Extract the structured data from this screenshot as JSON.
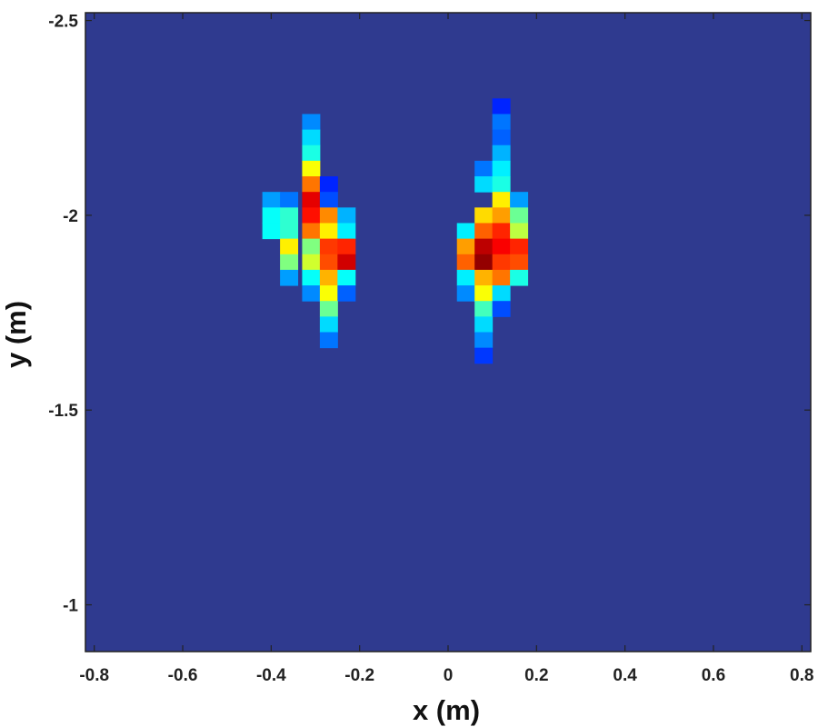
{
  "chart_data": {
    "type": "heatmap",
    "title": "",
    "xlabel": "x (m)",
    "ylabel": "y (m)",
    "xlim": [
      -0.82,
      0.82
    ],
    "ylim": [
      -0.88,
      -2.52
    ],
    "y_axis_reversed": true,
    "x_ticks": [
      "-0.8",
      "-0.6",
      "-0.4",
      "-0.2",
      "0",
      "0.2",
      "0.4",
      "0.6",
      "0.8"
    ],
    "y_ticks": [
      "-2.5",
      "-2",
      "-1.5",
      "-1"
    ],
    "grid": false,
    "colormap": "jet",
    "background_color": "#2f3a8f",
    "cell_width": 0.04,
    "cell_height": 0.04,
    "value_range": [
      0,
      1
    ],
    "cells": [
      {
        "x": -0.31,
        "y": -2.24,
        "v": 0.26
      },
      {
        "x": -0.31,
        "y": -2.2,
        "v": 0.34
      },
      {
        "x": -0.31,
        "y": -2.16,
        "v": 0.4
      },
      {
        "x": -0.31,
        "y": -2.12,
        "v": 0.62
      },
      {
        "x": -0.31,
        "y": -2.08,
        "v": 0.76
      },
      {
        "x": -0.27,
        "y": -2.08,
        "v": 0.16
      },
      {
        "x": -0.4,
        "y": -2.04,
        "v": 0.28
      },
      {
        "x": -0.36,
        "y": -2.04,
        "v": 0.24
      },
      {
        "x": -0.31,
        "y": -2.04,
        "v": 0.9
      },
      {
        "x": -0.27,
        "y": -2.04,
        "v": 0.2
      },
      {
        "x": -0.4,
        "y": -2.0,
        "v": 0.38
      },
      {
        "x": -0.36,
        "y": -2.0,
        "v": 0.42
      },
      {
        "x": -0.31,
        "y": -2.0,
        "v": 0.86
      },
      {
        "x": -0.27,
        "y": -2.0,
        "v": 0.74
      },
      {
        "x": -0.23,
        "y": -2.0,
        "v": 0.3
      },
      {
        "x": -0.4,
        "y": -1.96,
        "v": 0.38
      },
      {
        "x": -0.36,
        "y": -1.96,
        "v": 0.42
      },
      {
        "x": -0.31,
        "y": -1.96,
        "v": 0.76
      },
      {
        "x": -0.27,
        "y": -1.96,
        "v": 0.64
      },
      {
        "x": -0.23,
        "y": -1.96,
        "v": 0.36
      },
      {
        "x": -0.36,
        "y": -1.92,
        "v": 0.64
      },
      {
        "x": -0.31,
        "y": -1.92,
        "v": 0.5
      },
      {
        "x": -0.27,
        "y": -1.92,
        "v": 0.82
      },
      {
        "x": -0.23,
        "y": -1.92,
        "v": 0.84
      },
      {
        "x": -0.36,
        "y": -1.88,
        "v": 0.5
      },
      {
        "x": -0.31,
        "y": -1.88,
        "v": 0.58
      },
      {
        "x": -0.27,
        "y": -1.88,
        "v": 0.8
      },
      {
        "x": -0.23,
        "y": -1.88,
        "v": 0.92
      },
      {
        "x": -0.36,
        "y": -1.84,
        "v": 0.28
      },
      {
        "x": -0.31,
        "y": -1.84,
        "v": 0.38
      },
      {
        "x": -0.27,
        "y": -1.84,
        "v": 0.7
      },
      {
        "x": -0.23,
        "y": -1.84,
        "v": 0.38
      },
      {
        "x": -0.31,
        "y": -1.8,
        "v": 0.26
      },
      {
        "x": -0.27,
        "y": -1.8,
        "v": 0.62
      },
      {
        "x": -0.23,
        "y": -1.8,
        "v": 0.22
      },
      {
        "x": -0.27,
        "y": -1.76,
        "v": 0.48
      },
      {
        "x": -0.27,
        "y": -1.72,
        "v": 0.34
      },
      {
        "x": -0.27,
        "y": -1.68,
        "v": 0.24
      },
      {
        "x": 0.12,
        "y": -2.28,
        "v": 0.16
      },
      {
        "x": 0.12,
        "y": -2.24,
        "v": 0.24
      },
      {
        "x": 0.12,
        "y": -2.2,
        "v": 0.22
      },
      {
        "x": 0.12,
        "y": -2.16,
        "v": 0.3
      },
      {
        "x": 0.08,
        "y": -2.12,
        "v": 0.24
      },
      {
        "x": 0.12,
        "y": -2.12,
        "v": 0.36
      },
      {
        "x": 0.08,
        "y": -2.08,
        "v": 0.34
      },
      {
        "x": 0.12,
        "y": -2.08,
        "v": 0.4
      },
      {
        "x": 0.12,
        "y": -2.04,
        "v": 0.64
      },
      {
        "x": 0.16,
        "y": -2.04,
        "v": 0.28
      },
      {
        "x": 0.08,
        "y": -2.0,
        "v": 0.66
      },
      {
        "x": 0.12,
        "y": -2.0,
        "v": 0.72
      },
      {
        "x": 0.16,
        "y": -2.0,
        "v": 0.48
      },
      {
        "x": 0.04,
        "y": -1.96,
        "v": 0.36
      },
      {
        "x": 0.08,
        "y": -1.96,
        "v": 0.78
      },
      {
        "x": 0.12,
        "y": -1.96,
        "v": 0.84
      },
      {
        "x": 0.16,
        "y": -1.96,
        "v": 0.56
      },
      {
        "x": 0.04,
        "y": -1.92,
        "v": 0.72
      },
      {
        "x": 0.08,
        "y": -1.92,
        "v": 0.94
      },
      {
        "x": 0.12,
        "y": -1.92,
        "v": 0.88
      },
      {
        "x": 0.16,
        "y": -1.92,
        "v": 0.84
      },
      {
        "x": 0.04,
        "y": -1.88,
        "v": 0.78
      },
      {
        "x": 0.08,
        "y": -1.88,
        "v": 0.98
      },
      {
        "x": 0.12,
        "y": -1.88,
        "v": 0.82
      },
      {
        "x": 0.16,
        "y": -1.88,
        "v": 0.8
      },
      {
        "x": 0.04,
        "y": -1.84,
        "v": 0.36
      },
      {
        "x": 0.08,
        "y": -1.84,
        "v": 0.7
      },
      {
        "x": 0.12,
        "y": -1.84,
        "v": 0.76
      },
      {
        "x": 0.16,
        "y": -1.84,
        "v": 0.4
      },
      {
        "x": 0.04,
        "y": -1.8,
        "v": 0.26
      },
      {
        "x": 0.08,
        "y": -1.8,
        "v": 0.62
      },
      {
        "x": 0.12,
        "y": -1.8,
        "v": 0.34
      },
      {
        "x": 0.08,
        "y": -1.76,
        "v": 0.44
      },
      {
        "x": 0.12,
        "y": -1.76,
        "v": 0.2
      },
      {
        "x": 0.08,
        "y": -1.72,
        "v": 0.34
      },
      {
        "x": 0.08,
        "y": -1.68,
        "v": 0.26
      },
      {
        "x": 0.08,
        "y": -1.64,
        "v": 0.18
      }
    ]
  }
}
